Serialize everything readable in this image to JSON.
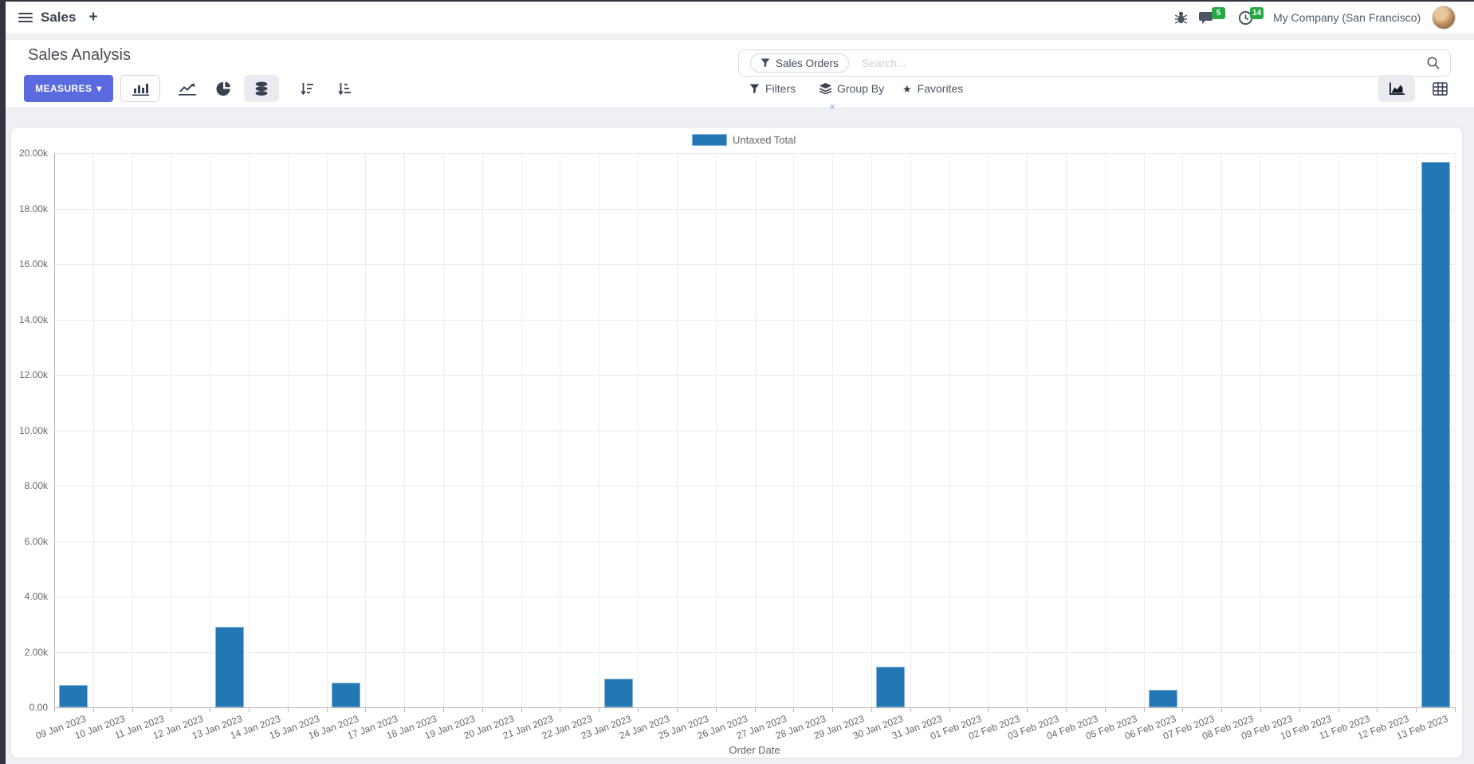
{
  "navbar": {
    "app_name": "Sales",
    "company": "My Company (San Francisco)",
    "message_badge": "5",
    "activity_badge": "14"
  },
  "control_panel": {
    "title": "Sales Analysis",
    "measures_label": "MEASURES",
    "search": {
      "facet": "Sales Orders",
      "placeholder": "Search..."
    },
    "filters_label": "Filters",
    "group_by_label": "Group By",
    "favorites_label": "Favorites"
  },
  "icons": {
    "caret_down": "▾",
    "plus": "+",
    "star": "★",
    "remove_x": "×"
  },
  "colors": {
    "primary_button": "#5a6bdf",
    "badge_green": "#28a745",
    "bar": "#2277b4",
    "bar_border": "#8ab4d8",
    "remove_x": "#8aa6e4"
  },
  "chart_data": {
    "type": "bar",
    "title": "",
    "xlabel": "Order Date",
    "ylabel": "",
    "legend_position": "top",
    "grid": true,
    "legend": [
      {
        "label": "Untaxed Total",
        "color": "#2277b4"
      }
    ],
    "ylim": [
      0,
      20000
    ],
    "ytick_step": 2000,
    "ytick_labels": [
      "0.00",
      "2.00k",
      "4.00k",
      "6.00k",
      "8.00k",
      "10.00k",
      "12.00k",
      "14.00k",
      "16.00k",
      "18.00k",
      "20.00k"
    ],
    "categories": [
      "09 Jan 2023",
      "10 Jan 2023",
      "11 Jan 2023",
      "12 Jan 2023",
      "13 Jan 2023",
      "14 Jan 2023",
      "15 Jan 2023",
      "16 Jan 2023",
      "17 Jan 2023",
      "18 Jan 2023",
      "19 Jan 2023",
      "20 Jan 2023",
      "21 Jan 2023",
      "22 Jan 2023",
      "23 Jan 2023",
      "24 Jan 2023",
      "25 Jan 2023",
      "26 Jan 2023",
      "27 Jan 2023",
      "28 Jan 2023",
      "29 Jan 2023",
      "30 Jan 2023",
      "31 Jan 2023",
      "01 Feb 2023",
      "02 Feb 2023",
      "03 Feb 2023",
      "04 Feb 2023",
      "05 Feb 2023",
      "06 Feb 2023",
      "07 Feb 2023",
      "08 Feb 2023",
      "09 Feb 2023",
      "10 Feb 2023",
      "11 Feb 2023",
      "12 Feb 2023",
      "13 Feb 2023"
    ],
    "values": [
      800,
      0,
      0,
      0,
      2900,
      0,
      0,
      900,
      0,
      0,
      0,
      0,
      0,
      0,
      1050,
      0,
      0,
      0,
      0,
      0,
      0,
      1480,
      0,
      0,
      0,
      0,
      0,
      0,
      640,
      0,
      0,
      0,
      0,
      0,
      0,
      19680
    ]
  }
}
